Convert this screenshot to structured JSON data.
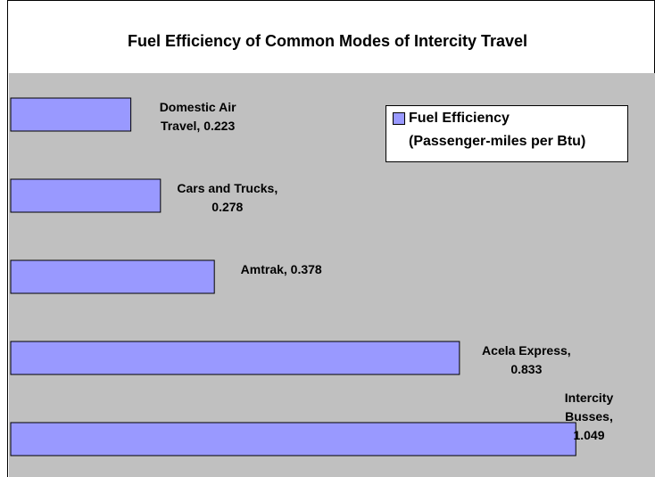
{
  "chart_data": {
    "type": "barh",
    "title": "Fuel Efficiency of Common Modes of Intercity Travel",
    "series": [
      {
        "name": "Fuel Efficiency\n(Passenger-miles per Btu)",
        "color": "#9999ff",
        "values": [
          0.223,
          0.278,
          0.378,
          0.833,
          1.049
        ],
        "value_labels": [
          "Domestic Air\nTravel, 0.223",
          "Cars and Trucks,\n0.278",
          "Amtrak, 0.378",
          "Acela Express,\n0.833",
          "Intercity Busses,\n1.049"
        ]
      }
    ],
    "xlim": [
      0,
      1.196
    ],
    "legend": "upper right",
    "background": "#c0c0c0"
  }
}
